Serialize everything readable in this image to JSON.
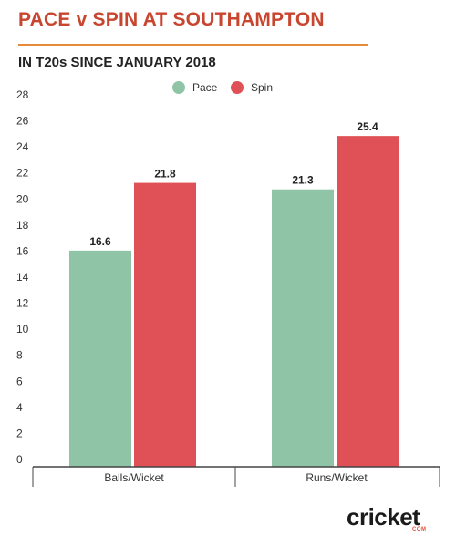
{
  "header": {
    "title": "PACE v SPIN AT SOUTHAMPTON",
    "subtitle": "IN T20s SINCE JANUARY 2018"
  },
  "brand": {
    "logo_text": "cricket",
    "logo_sub": "COM"
  },
  "colors": {
    "pace": "#8fc4a6",
    "spin": "#df5157",
    "title": "#c8462f",
    "accent": "#e8893a"
  },
  "chart_data": {
    "type": "bar",
    "title": "PACE v SPIN AT SOUTHAMPTON",
    "subtitle": "IN T20s SINCE JANUARY 2018",
    "categories": [
      "Balls/Wicket",
      "Runs/Wicket"
    ],
    "series": [
      {
        "name": "Pace",
        "color": "#8fc4a6",
        "values": [
          16.6,
          21.3
        ]
      },
      {
        "name": "Spin",
        "color": "#df5157",
        "values": [
          21.8,
          25.4
        ]
      }
    ],
    "ylim": [
      0,
      28
    ],
    "yticks": [
      0,
      2,
      4,
      6,
      8,
      10,
      12,
      14,
      16,
      18,
      20,
      22,
      24,
      26,
      28
    ],
    "grid": false,
    "legend": "top-center",
    "data_labels": true
  }
}
